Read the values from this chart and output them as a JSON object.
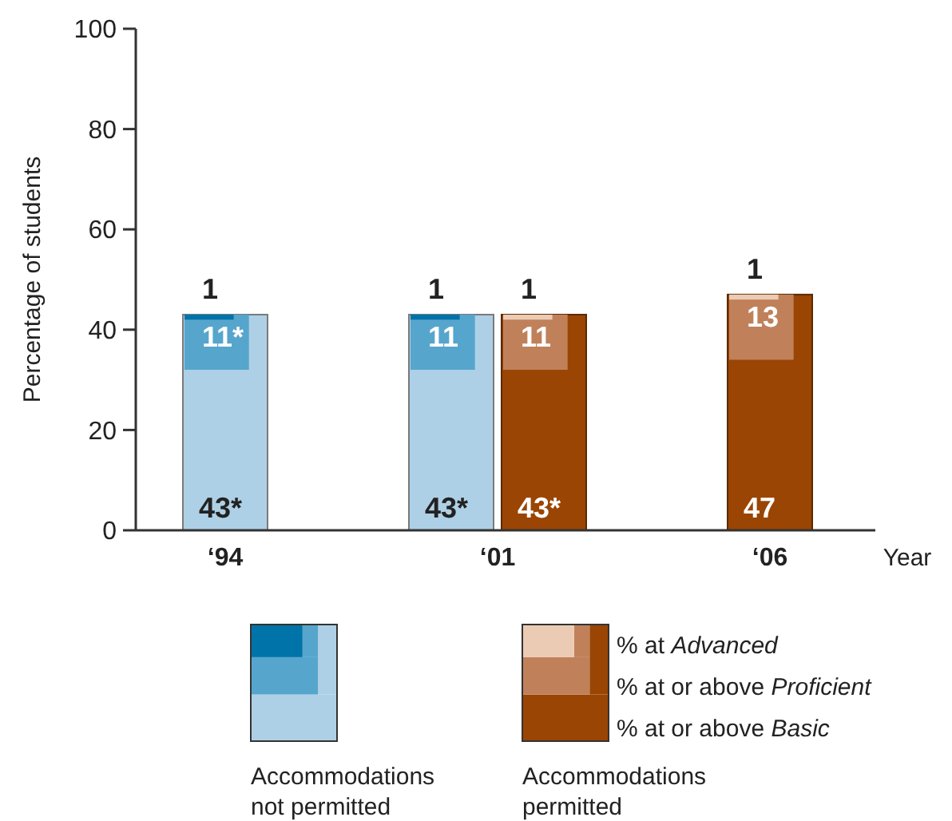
{
  "chart_data": {
    "type": "bar",
    "categories": [
      "‘94",
      "‘01",
      "‘06"
    ],
    "ylabel": "Percentage of students",
    "xlabel": "Year",
    "ylim": [
      0,
      100
    ],
    "yticks": [
      0,
      20,
      40,
      60,
      80,
      100
    ],
    "legend": "bottom",
    "grid": false,
    "series": [
      {
        "color": "#aed0e6",
        "values": [
          43,
          43,
          null
        ],
        "value_labels": [
          "43*",
          "43*",
          null
        ]
      },
      {
        "color": "#56a5cc",
        "values": [
          11,
          11,
          null
        ],
        "base": [
          32,
          32,
          null
        ],
        "value_labels": [
          "11*",
          "11",
          null
        ]
      },
      {
        "color": "#0073a8",
        "values": [
          1,
          1,
          null
        ],
        "base": [
          42,
          42,
          null
        ],
        "value_labels": [
          "1",
          "1",
          null
        ]
      },
      {
        "name": "% at or above Basic",
        "color": "#9a4503",
        "values": [
          null,
          43,
          47
        ],
        "value_labels": [
          null,
          "43*",
          "47"
        ]
      },
      {
        "name": "% at or above Proficient",
        "color": "#c0815a",
        "values": [
          null,
          11,
          13
        ],
        "base": [
          null,
          32,
          34
        ],
        "value_labels": [
          null,
          "11",
          "13"
        ]
      },
      {
        "name": "% at Advanced",
        "color": "#ebcbb4",
        "values": [
          null,
          1,
          1
        ],
        "base": [
          null,
          42,
          46
        ],
        "value_labels": [
          null,
          "1",
          "1"
        ]
      }
    ],
    "annotations": [
      "Accommodations not permitted",
      "Accommodations permitted"
    ]
  }
}
